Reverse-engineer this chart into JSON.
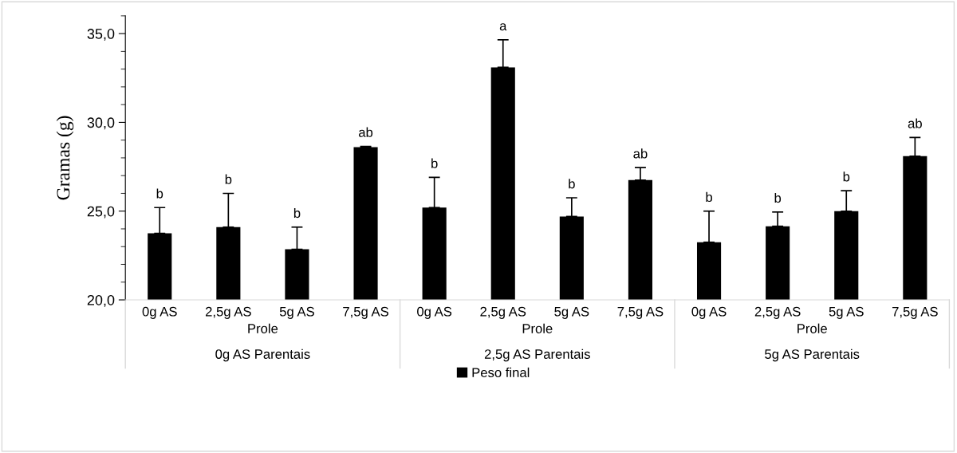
{
  "chart_data": {
    "type": "bar",
    "categories": [
      "0g AS",
      "2,5g AS",
      "5g AS",
      "7,5g AS",
      "0g AS",
      "2,5g AS",
      "5g AS",
      "7,5g AS",
      "0g AS",
      "2,5g AS",
      "5g AS",
      "7,5g AS"
    ],
    "series": [
      {
        "name": "Peso final",
        "color": "#000000",
        "values": [
          23.75,
          24.1,
          22.85,
          28.6,
          25.2,
          33.1,
          24.7,
          26.75,
          23.25,
          24.15,
          25.0,
          28.1
        ],
        "errors": [
          [
            23.75,
            25.2
          ],
          [
            24.1,
            26.0
          ],
          [
            22.85,
            24.1
          ],
          [
            28.6,
            28.65
          ],
          [
            25.2,
            26.9
          ],
          [
            33.1,
            34.65
          ],
          [
            24.7,
            25.75
          ],
          [
            26.75,
            27.45
          ],
          [
            23.25,
            25.0
          ],
          [
            24.15,
            24.95
          ],
          [
            25.0,
            26.15
          ],
          [
            28.1,
            29.15
          ]
        ]
      }
    ],
    "ylabel": "Gramas (g)",
    "ylim": [
      20,
      36
    ],
    "yticks": [
      {
        "value": 20,
        "label": "20,0"
      },
      {
        "value": 25,
        "label": "25,0"
      },
      {
        "value": 30,
        "label": "30,0"
      },
      {
        "value": 35,
        "label": "35,0"
      }
    ],
    "grid": false,
    "legend": "bottom",
    "annotations": [
      "b",
      "b",
      "b",
      "ab",
      "b",
      "a",
      "b",
      "ab",
      "b",
      "b",
      "b",
      "ab",
      "Prole",
      "Prole",
      "Prole",
      "0g AS Parentais",
      "2,5g AS Parentais",
      "5g AS Parentais"
    ]
  }
}
